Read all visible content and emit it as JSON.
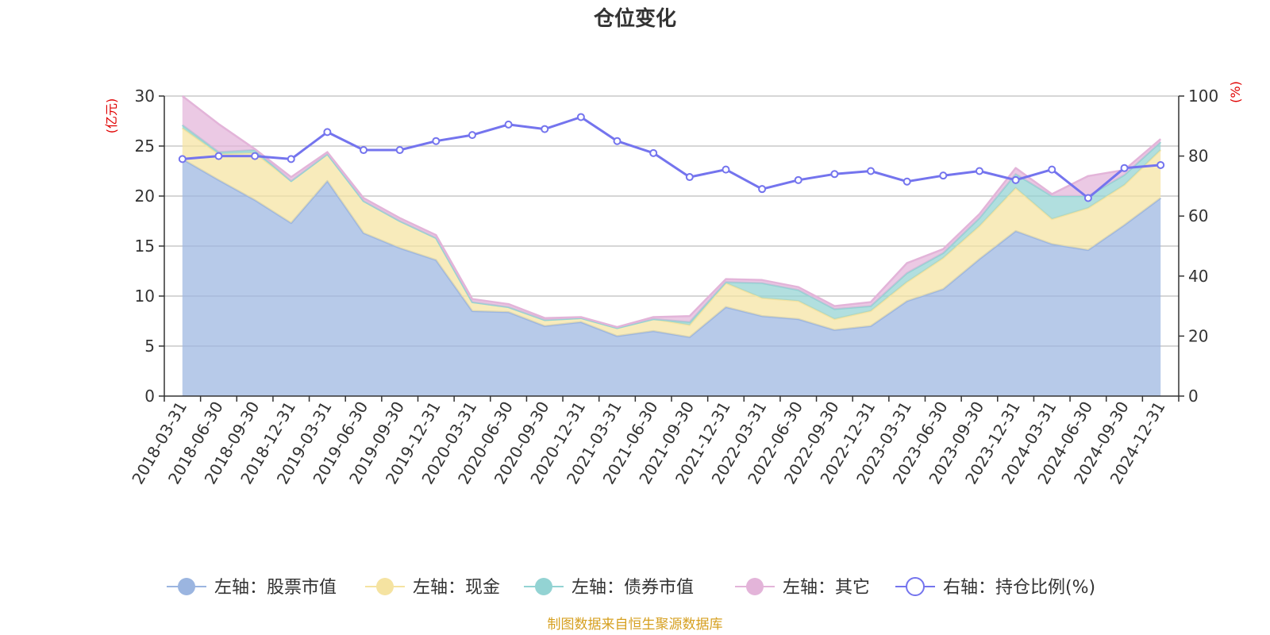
{
  "chart_data": {
    "type": "area",
    "title": "仓位变化",
    "left_axis_unit": "(亿元)",
    "right_axis_unit": "(%)",
    "left_ylim": [
      0,
      30
    ],
    "left_yticks": [
      0,
      5,
      10,
      15,
      20,
      25,
      30
    ],
    "right_ylim": [
      0,
      100
    ],
    "right_yticks": [
      0,
      20,
      40,
      60,
      80,
      100
    ],
    "grid": true,
    "legend_position": "bottom",
    "categories": [
      "2018-03-31",
      "2018-06-30",
      "2018-09-30",
      "2018-12-31",
      "2019-03-31",
      "2019-06-30",
      "2019-09-30",
      "2019-12-31",
      "2020-03-31",
      "2020-06-30",
      "2020-09-30",
      "2020-12-31",
      "2021-03-31",
      "2021-06-30",
      "2021-09-30",
      "2021-12-31",
      "2022-03-31",
      "2022-06-30",
      "2022-09-30",
      "2022-12-31",
      "2023-03-31",
      "2023-06-30",
      "2023-09-30",
      "2023-12-31",
      "2024-03-31",
      "2024-06-30",
      "2024-09-30",
      "2024-12-31"
    ],
    "stacked_series": [
      {
        "name": "左轴：股票市值",
        "axis": "left",
        "color": "#9bb5e0",
        "values": [
          23.7,
          21.6,
          19.6,
          17.3,
          21.5,
          16.3,
          14.8,
          13.6,
          8.5,
          8.4,
          7.0,
          7.4,
          6.0,
          6.5,
          5.9,
          8.9,
          8.0,
          7.7,
          6.6,
          7.0,
          9.5,
          10.7,
          13.7,
          16.5,
          15.2,
          14.6,
          17.1,
          19.8
        ]
      },
      {
        "name": "左轴：现金",
        "axis": "left",
        "color": "#f5e3a1",
        "values": [
          3.1,
          2.6,
          4.7,
          4.2,
          2.7,
          3.2,
          2.7,
          2.2,
          0.9,
          0.5,
          0.6,
          0.4,
          0.8,
          1.2,
          1.2,
          2.4,
          1.8,
          1.8,
          1.1,
          1.5,
          1.9,
          3.1,
          3.3,
          4.3,
          2.5,
          4.2,
          4.0,
          4.8
        ]
      },
      {
        "name": "左轴：债券市值",
        "axis": "left",
        "color": "#93d3d3",
        "values": [
          0.3,
          0.2,
          0.3,
          0,
          0,
          0,
          0,
          0,
          0,
          0,
          0,
          0,
          0,
          0,
          0.3,
          0.1,
          1.5,
          1.1,
          1.0,
          0.5,
          0.9,
          0.5,
          0.8,
          1.4,
          2.3,
          1.2,
          1.0,
          0.8
        ]
      },
      {
        "name": "左轴：其它",
        "axis": "left",
        "color": "#e3b4d9",
        "values": [
          2.9,
          2.8,
          0.1,
          0.4,
          0.2,
          0.3,
          0.3,
          0.3,
          0.3,
          0.3,
          0.2,
          0.1,
          0.1,
          0.2,
          0.6,
          0.3,
          0.3,
          0.3,
          0.3,
          0.4,
          1.0,
          0.4,
          0.4,
          0.6,
          0.2,
          2.0,
          0.5,
          0.3
        ]
      }
    ],
    "line_series": {
      "name": "右轴：持仓比例(%)",
      "axis": "right",
      "color": "#7474ee",
      "values": [
        79,
        80,
        80,
        79,
        88,
        82,
        82,
        85,
        87,
        90.5,
        89,
        93,
        85,
        81,
        73,
        75.5,
        69,
        72,
        74,
        75,
        71.5,
        73.5,
        75,
        72,
        75.5,
        66,
        76,
        77
      ]
    },
    "source_note": "制图数据来自恒生聚源数据库"
  }
}
